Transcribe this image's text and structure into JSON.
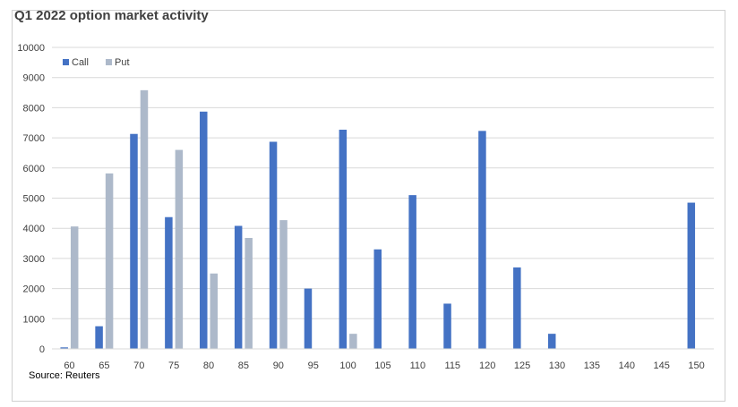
{
  "chart_data": {
    "type": "bar",
    "title": "Q1 2022 option market activity",
    "source": "Source: Reuters",
    "categories": [
      "60",
      "65",
      "70",
      "75",
      "80",
      "85",
      "90",
      "95",
      "100",
      "105",
      "110",
      "115",
      "120",
      "125",
      "130",
      "135",
      "140",
      "145",
      "150"
    ],
    "series": [
      {
        "name": "Call",
        "color": "#4472c4",
        "values": [
          50,
          750,
          7130,
          4370,
          7870,
          4080,
          6870,
          2000,
          7270,
          3300,
          5100,
          1500,
          7230,
          2700,
          500,
          0,
          0,
          0,
          4850
        ]
      },
      {
        "name": "Put",
        "color": "#adb9ca",
        "values": [
          4060,
          5820,
          8580,
          6600,
          2500,
          3680,
          4270,
          0,
          500,
          0,
          0,
          0,
          0,
          0,
          0,
          0,
          0,
          0,
          0
        ]
      }
    ],
    "ylim": [
      0,
      10000
    ],
    "yticks": [
      0,
      1000,
      2000,
      3000,
      4000,
      5000,
      6000,
      7000,
      8000,
      9000,
      10000
    ],
    "grid": true,
    "legend_position": "top-left"
  }
}
